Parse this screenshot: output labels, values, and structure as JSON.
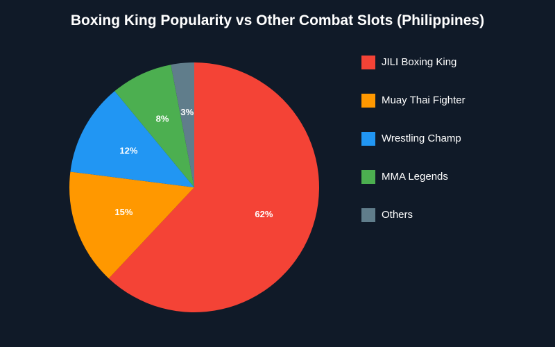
{
  "page": {
    "background": "#101a28"
  },
  "chart_data": {
    "type": "pie",
    "title": "Boxing King Popularity vs Other Combat Slots (Philippines)",
    "categories": [
      "JILI Boxing King",
      "Muay Thai Fighter",
      "Wrestling Champ",
      "MMA Legends",
      "Others"
    ],
    "values": [
      62,
      15,
      12,
      8,
      3
    ],
    "value_labels": [
      "62%",
      "15%",
      "12%",
      "8%",
      "3%"
    ],
    "colors": [
      "#f44336",
      "#ff9800",
      "#2196f3",
      "#4caf50",
      "#607d8b"
    ],
    "legend_position": "right"
  }
}
